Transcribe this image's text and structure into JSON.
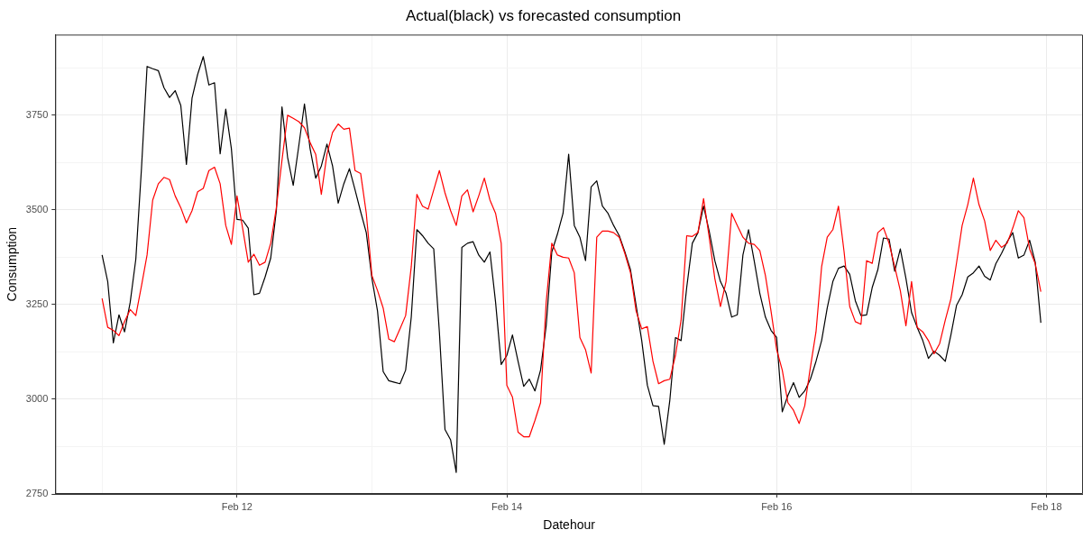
{
  "chart_data": {
    "type": "line",
    "title": "Actual(black) vs forecasted consumption",
    "xlabel": "Datehour",
    "ylabel": "Consumption",
    "grid": true,
    "x": [
      "--02-11T00:00",
      "--02-11T01:00",
      "--02-11T02:00",
      "--02-11T03:00",
      "--02-11T04:00",
      "--02-11T05:00",
      "--02-11T06:00",
      "--02-11T07:00",
      "--02-11T08:00",
      "--02-11T09:00",
      "--02-11T10:00",
      "--02-11T11:00",
      "--02-11T12:00",
      "--02-11T13:00",
      "--02-11T14:00",
      "--02-11T15:00",
      "--02-11T16:00",
      "--02-11T17:00",
      "--02-11T18:00",
      "--02-11T19:00",
      "--02-11T20:00",
      "--02-11T21:00",
      "--02-11T22:00",
      "--02-11T23:00",
      "--02-12T00:00",
      "--02-12T01:00",
      "--02-12T02:00",
      "--02-12T03:00",
      "--02-12T04:00",
      "--02-12T05:00",
      "--02-12T06:00",
      "--02-12T07:00",
      "--02-12T08:00",
      "--02-12T09:00",
      "--02-12T10:00",
      "--02-12T11:00",
      "--02-12T12:00",
      "--02-12T13:00",
      "--02-12T14:00",
      "--02-12T15:00",
      "--02-12T16:00",
      "--02-12T17:00",
      "--02-12T18:00",
      "--02-12T19:00",
      "--02-12T20:00",
      "--02-12T21:00",
      "--02-12T22:00",
      "--02-12T23:00",
      "--02-13T00:00",
      "--02-13T01:00",
      "--02-13T02:00",
      "--02-13T03:00",
      "--02-13T04:00",
      "--02-13T05:00",
      "--02-13T06:00",
      "--02-13T07:00",
      "--02-13T08:00",
      "--02-13T09:00",
      "--02-13T10:00",
      "--02-13T11:00",
      "--02-13T12:00",
      "--02-13T13:00",
      "--02-13T14:00",
      "--02-13T15:00",
      "--02-13T16:00",
      "--02-13T17:00",
      "--02-13T18:00",
      "--02-13T19:00",
      "--02-13T20:00",
      "--02-13T21:00",
      "--02-13T22:00",
      "--02-13T23:00",
      "--02-14T00:00",
      "--02-14T01:00",
      "--02-14T02:00",
      "--02-14T03:00",
      "--02-14T04:00",
      "--02-14T05:00",
      "--02-14T06:00",
      "--02-14T07:00",
      "--02-14T08:00",
      "--02-14T09:00",
      "--02-14T10:00",
      "--02-14T11:00",
      "--02-14T12:00",
      "--02-14T13:00",
      "--02-14T14:00",
      "--02-14T15:00",
      "--02-14T16:00",
      "--02-14T17:00",
      "--02-14T18:00",
      "--02-14T19:00",
      "--02-14T20:00",
      "--02-14T21:00",
      "--02-14T22:00",
      "--02-14T23:00",
      "--02-15T00:00",
      "--02-15T01:00",
      "--02-15T02:00",
      "--02-15T03:00",
      "--02-15T04:00",
      "--02-15T05:00",
      "--02-15T06:00",
      "--02-15T07:00",
      "--02-15T08:00",
      "--02-15T09:00",
      "--02-15T10:00",
      "--02-15T11:00",
      "--02-15T12:00",
      "--02-15T13:00",
      "--02-15T14:00",
      "--02-15T15:00",
      "--02-15T16:00",
      "--02-15T17:00",
      "--02-15T18:00",
      "--02-15T19:00",
      "--02-15T20:00",
      "--02-15T21:00",
      "--02-15T22:00",
      "--02-15T23:00",
      "--02-16T00:00",
      "--02-16T01:00",
      "--02-16T02:00",
      "--02-16T03:00",
      "--02-16T04:00",
      "--02-16T05:00",
      "--02-16T06:00",
      "--02-16T07:00",
      "--02-16T08:00",
      "--02-16T09:00",
      "--02-16T10:00",
      "--02-16T11:00",
      "--02-16T12:00",
      "--02-16T13:00",
      "--02-16T14:00",
      "--02-16T15:00",
      "--02-16T16:00",
      "--02-16T17:00",
      "--02-16T18:00",
      "--02-16T19:00",
      "--02-16T20:00",
      "--02-16T21:00",
      "--02-16T22:00",
      "--02-16T23:00",
      "--02-17T00:00",
      "--02-17T01:00",
      "--02-17T02:00",
      "--02-17T03:00",
      "--02-17T04:00",
      "--02-17T05:00",
      "--02-17T06:00",
      "--02-17T07:00",
      "--02-17T08:00",
      "--02-17T09:00",
      "--02-17T10:00",
      "--02-17T11:00",
      "--02-17T12:00",
      "--02-17T13:00",
      "--02-17T14:00",
      "--02-17T15:00",
      "--02-17T16:00",
      "--02-17T17:00",
      "--02-17T18:00",
      "--02-17T19:00",
      "--02-17T20:00",
      "--02-17T21:00",
      "--02-17T22:00",
      "--02-17T23:00"
    ],
    "series": [
      {
        "color": "#ff0000",
        "values": [
          3266,
          3190,
          3182,
          3168,
          3205,
          3237,
          3221,
          3299,
          3381,
          3526,
          3569,
          3586,
          3580,
          3537,
          3506,
          3466,
          3498,
          3548,
          3557,
          3604,
          3613,
          3569,
          3459,
          3409,
          3537,
          3452,
          3362,
          3383,
          3354,
          3362,
          3412,
          3506,
          3631,
          3750,
          3742,
          3733,
          3717,
          3678,
          3647,
          3541,
          3647,
          3705,
          3727,
          3713,
          3716,
          3604,
          3596,
          3491,
          3327,
          3287,
          3241,
          3159,
          3152,
          3186,
          3221,
          3350,
          3541,
          3510,
          3502,
          3553,
          3604,
          3545,
          3498,
          3459,
          3537,
          3553,
          3495,
          3537,
          3584,
          3526,
          3491,
          3412,
          3037,
          3006,
          2913,
          2901,
          2901,
          2944,
          2991,
          3256,
          3412,
          3381,
          3375,
          3373,
          3334,
          3163,
          3131,
          3069,
          3428,
          3444,
          3444,
          3440,
          3428,
          3385,
          3334,
          3233,
          3186,
          3192,
          3100,
          3041,
          3049,
          3053,
          3116,
          3209,
          3432,
          3430,
          3440,
          3530,
          3428,
          3319,
          3245,
          3311,
          3491,
          3459,
          3428,
          3412,
          3409,
          3393,
          3327,
          3233,
          3131,
          3077,
          2991,
          2971,
          2936,
          2983,
          3084,
          3178,
          3350,
          3428,
          3448,
          3510,
          3389,
          3245,
          3205,
          3198,
          3366,
          3359,
          3440,
          3453,
          3412,
          3350,
          3287,
          3194,
          3311,
          3190,
          3178,
          3155,
          3120,
          3147,
          3209,
          3265,
          3360,
          3459,
          3514,
          3584,
          3514,
          3471,
          3393,
          3420,
          3401,
          3412,
          3452,
          3498,
          3479,
          3397,
          3358,
          3284
        ]
      },
      {
        "color": "#000000",
        "values": [
          3381,
          3311,
          3149,
          3223,
          3178,
          3256,
          3370,
          3608,
          3879,
          3873,
          3868,
          3823,
          3797,
          3815,
          3776,
          3620,
          3795,
          3858,
          3905,
          3830,
          3836,
          3648,
          3766,
          3662,
          3475,
          3473,
          3452,
          3276,
          3280,
          3323,
          3373,
          3498,
          3772,
          3639,
          3565,
          3670,
          3780,
          3662,
          3584,
          3616,
          3674,
          3616,
          3518,
          3569,
          3609,
          3553,
          3495,
          3440,
          3319,
          3233,
          3073,
          3049,
          3045,
          3041,
          3077,
          3217,
          3448,
          3432,
          3412,
          3397,
          3178,
          2920,
          2893,
          2807,
          3401,
          3412,
          3416,
          3381,
          3362,
          3389,
          3256,
          3092,
          3116,
          3170,
          3100,
          3034,
          3053,
          3022,
          3077,
          3194,
          3389,
          3436,
          3491,
          3647,
          3459,
          3428,
          3366,
          3561,
          3577,
          3510,
          3491,
          3459,
          3432,
          3389,
          3342,
          3248,
          3155,
          3037,
          2983,
          2981,
          2881,
          2998,
          3163,
          3155,
          3295,
          3412,
          3440,
          3510,
          3444,
          3366,
          3311,
          3280,
          3217,
          3223,
          3381,
          3448,
          3366,
          3280,
          3217,
          3182,
          3163,
          2967,
          3010,
          3044,
          3005,
          3022,
          3053,
          3100,
          3155,
          3241,
          3311,
          3346,
          3352,
          3330,
          3260,
          3221,
          3223,
          3295,
          3342,
          3426,
          3423,
          3338,
          3397,
          3319,
          3229,
          3190,
          3155,
          3108,
          3127,
          3116,
          3100,
          3170,
          3248,
          3276,
          3323,
          3334,
          3352,
          3325,
          3315,
          3358,
          3385,
          3416,
          3440,
          3373,
          3381,
          3420,
          3362,
          3202
        ]
      }
    ],
    "xlim": [
      "--02-10T15:40",
      "--02-18T06:30"
    ],
    "xticks": [
      {
        "value": "--02-11",
        "label": null
      },
      {
        "value": "--02-12",
        "label": "Feb 12"
      },
      {
        "value": "--02-13",
        "label": null
      },
      {
        "value": "--02-14",
        "label": "Feb 14"
      },
      {
        "value": "--02-15",
        "label": null
      },
      {
        "value": "--02-16",
        "label": "Feb 16"
      },
      {
        "value": "--02-17",
        "label": null
      },
      {
        "value": "--02-18",
        "label": "Feb 18"
      }
    ],
    "ylim": [
      2750,
      3963
    ],
    "yticks": [
      2750,
      {
        "value": 2875,
        "label": null
      },
      3000,
      {
        "value": 3125,
        "label": null
      },
      3250,
      {
        "value": 3375,
        "label": null
      },
      3500,
      {
        "value": 3625,
        "label": null
      },
      3750,
      {
        "value": 3875,
        "label": null
      }
    ]
  }
}
